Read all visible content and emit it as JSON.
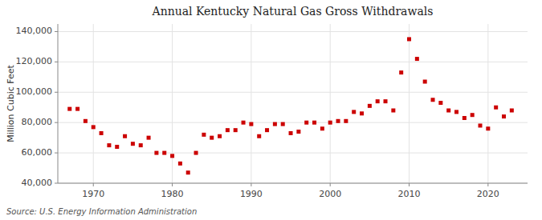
{
  "chart_data": {
    "type": "scatter",
    "title": "Annual Kentucky Natural Gas Gross Withdrawals",
    "ylabel": "Million Cubic Feet",
    "annotations": [
      "Source: U.S. Energy Information Administration"
    ],
    "x": [
      1967,
      1968,
      1969,
      1970,
      1971,
      1972,
      1973,
      1974,
      1975,
      1976,
      1977,
      1978,
      1979,
      1980,
      1981,
      1982,
      1983,
      1984,
      1985,
      1986,
      1987,
      1988,
      1989,
      1990,
      1991,
      1992,
      1993,
      1994,
      1995,
      1996,
      1997,
      1998,
      1999,
      2000,
      2001,
      2002,
      2003,
      2004,
      2005,
      2006,
      2007,
      2008,
      2009,
      2010,
      2011,
      2012,
      2013,
      2014,
      2015,
      2016,
      2017,
      2018,
      2019,
      2020,
      2021,
      2022,
      2023
    ],
    "values": [
      89000,
      89000,
      81000,
      77000,
      73000,
      65000,
      64000,
      71000,
      66000,
      65000,
      70000,
      60000,
      60000,
      58000,
      53000,
      47000,
      60000,
      72000,
      70000,
      71000,
      75000,
      75000,
      80000,
      79000,
      71000,
      75000,
      79000,
      79000,
      73000,
      74000,
      80000,
      80000,
      76000,
      80000,
      81000,
      81000,
      87000,
      86000,
      91000,
      94000,
      94000,
      88000,
      113000,
      135000,
      122000,
      107000,
      95000,
      93000,
      88000,
      87000,
      83000,
      85000,
      78000,
      76000,
      90000,
      84000,
      88000
    ],
    "color": "#cc0000",
    "marker": "square",
    "xlim": [
      1965.5,
      2025
    ],
    "xticks": [
      1970,
      1980,
      1990,
      2000,
      2010,
      2020
    ],
    "ylim": [
      40000,
      145000
    ],
    "yticks": [
      {
        "value": 40000,
        "label": "40,000"
      },
      {
        "value": 60000,
        "label": "60,000"
      },
      {
        "value": 80000,
        "label": "80,000"
      },
      {
        "value": 100000,
        "label": "100,000"
      },
      {
        "value": 120000,
        "label": "120,000"
      },
      {
        "value": 140000,
        "label": "140,000"
      }
    ],
    "grid": true
  }
}
